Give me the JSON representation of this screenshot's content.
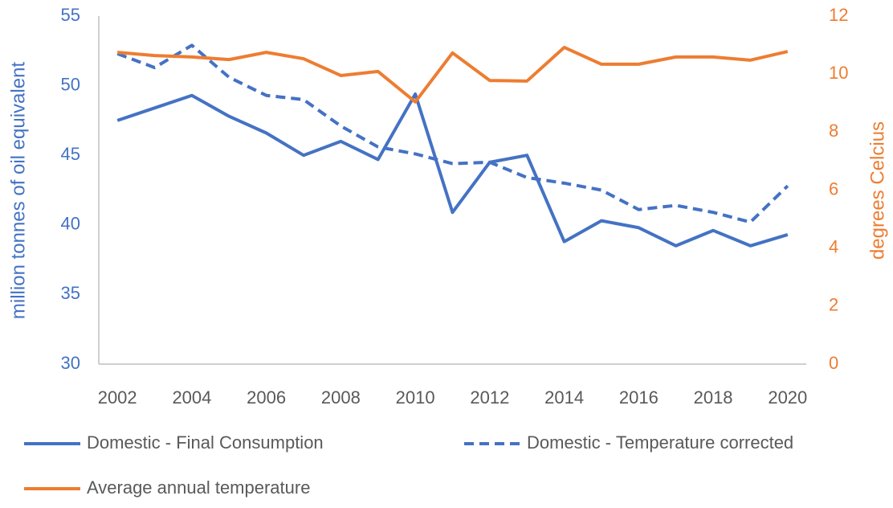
{
  "chart_data": {
    "type": "line",
    "y_label": "million tonnes of oil equivalent",
    "y2_label": "degrees Celcius",
    "x": [
      2002,
      2003,
      2004,
      2005,
      2006,
      2007,
      2008,
      2009,
      2010,
      2011,
      2012,
      2013,
      2014,
      2015,
      2016,
      2017,
      2018,
      2019,
      2020
    ],
    "xlim": [
      2001.5,
      2020.5
    ],
    "xticks": [
      2002,
      2004,
      2006,
      2008,
      2010,
      2012,
      2014,
      2016,
      2018,
      2020
    ],
    "ylim": [
      30,
      55
    ],
    "yticks": [
      30,
      35,
      40,
      45,
      50,
      55
    ],
    "y2lim": [
      0,
      12
    ],
    "y2ticks": [
      0,
      2,
      4,
      6,
      8,
      10,
      12
    ],
    "y_color": "#4472c4",
    "y2_color": "#ed7d31",
    "grid": false,
    "legend": "bottom",
    "series": [
      {
        "name": "Domestic - Final Consumption",
        "color": "#4472c4",
        "dash": false,
        "values": [
          47.5,
          48.4,
          49.3,
          47.8,
          46.6,
          45.0,
          46.0,
          44.7,
          49.4,
          40.9,
          44.5,
          45.0,
          38.8,
          40.3,
          39.8,
          38.5,
          39.6,
          38.5,
          39.3
        ]
      },
      {
        "name": "Domestic - Temperature corrected",
        "color": "#4472c4",
        "dash": true,
        "values": [
          52.3,
          51.3,
          52.9,
          50.6,
          49.3,
          49.0,
          47.1,
          45.6,
          45.1,
          44.4,
          44.5,
          43.4,
          43.0,
          42.5,
          41.1,
          41.4,
          40.9,
          40.2,
          42.8
        ]
      },
      {
        "name": "Average annual temperature",
        "color": "#ed7d31",
        "dash": false,
        "axis": "y2",
        "values": [
          10.75,
          10.64,
          10.59,
          10.5,
          10.75,
          10.53,
          9.95,
          10.09,
          9.04,
          10.73,
          9.78,
          9.76,
          10.92,
          10.34,
          10.34,
          10.59,
          10.59,
          10.48,
          10.78
        ]
      }
    ]
  }
}
